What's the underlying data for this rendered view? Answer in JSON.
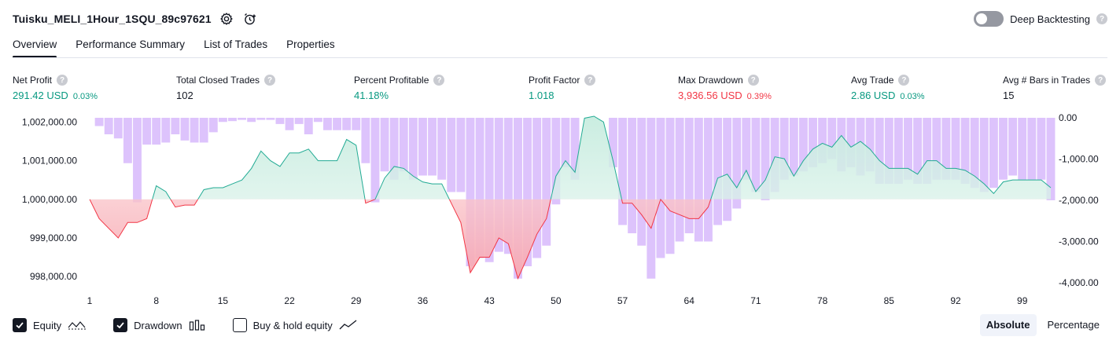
{
  "header": {
    "title": "Tuisku_MELI_1Hour_1SQU_89c97621",
    "deep_backtesting_label": "Deep Backtesting",
    "help_glyph": "?"
  },
  "icons": {
    "settings": "gear-icon",
    "alert": "alarm-clock-plus-icon",
    "help": "question-circle-icon"
  },
  "tabs": [
    {
      "label": "Overview",
      "active": true
    },
    {
      "label": "Performance Summary",
      "active": false
    },
    {
      "label": "List of Trades",
      "active": false
    },
    {
      "label": "Properties",
      "active": false
    }
  ],
  "metrics": [
    {
      "label": "Net Profit",
      "value": "291.42 USD",
      "pct": "0.03%",
      "tone": "pos"
    },
    {
      "label": "Total Closed Trades",
      "value": "102",
      "pct": "",
      "tone": "neu"
    },
    {
      "label": "Percent Profitable",
      "value": "41.18%",
      "pct": "",
      "tone": "pos"
    },
    {
      "label": "Profit Factor",
      "value": "1.018",
      "pct": "",
      "tone": "pos"
    },
    {
      "label": "Max Drawdown",
      "value": "3,936.56 USD",
      "pct": "0.39%",
      "tone": "neg"
    },
    {
      "label": "Avg Trade",
      "value": "2.86 USD",
      "pct": "0.03%",
      "tone": "pos"
    },
    {
      "label": "Avg # Bars in Trades",
      "value": "15",
      "pct": "",
      "tone": "neu"
    }
  ],
  "legend": [
    {
      "label": "Equity",
      "checked": true,
      "icon": "equity-wave-icon"
    },
    {
      "label": "Drawdown",
      "checked": true,
      "icon": "drawdown-bars-icon"
    },
    {
      "label": "Buy & hold equity",
      "checked": false,
      "icon": "buy-hold-line-icon"
    }
  ],
  "mode": {
    "absolute_label": "Absolute",
    "percentage_label": "Percentage",
    "selected": "Absolute"
  },
  "colors": {
    "equity_up": "#22ab94",
    "equity_down": "#f23645",
    "fill_up": "#d6f1ea",
    "fill_down": "#fcc8cc",
    "drawdown_bar": "#d7b8fb",
    "grid_text": "#131722"
  },
  "chart_data": {
    "type": "area",
    "x": [
      1,
      2,
      3,
      4,
      5,
      6,
      7,
      8,
      9,
      10,
      11,
      12,
      13,
      14,
      15,
      16,
      17,
      18,
      19,
      20,
      21,
      22,
      23,
      24,
      25,
      26,
      27,
      28,
      29,
      30,
      31,
      32,
      33,
      34,
      35,
      36,
      37,
      38,
      39,
      40,
      41,
      42,
      43,
      44,
      45,
      46,
      47,
      48,
      49,
      50,
      51,
      52,
      53,
      54,
      55,
      56,
      57,
      58,
      59,
      60,
      61,
      62,
      63,
      64,
      65,
      66,
      67,
      68,
      69,
      70,
      71,
      72,
      73,
      74,
      75,
      76,
      77,
      78,
      79,
      80,
      81,
      82,
      83,
      84,
      85,
      86,
      87,
      88,
      89,
      90,
      91,
      92,
      93,
      94,
      95,
      96,
      97,
      98,
      99,
      100,
      101,
      102
    ],
    "x_ticks": [
      1,
      8,
      15,
      22,
      29,
      36,
      43,
      50,
      57,
      64,
      71,
      78,
      85,
      92,
      99
    ],
    "series": [
      {
        "name": "Equity",
        "axis": "left",
        "values": [
          1000000,
          999500,
          999250,
          999000,
          999400,
          999400,
          999500,
          1000350,
          1000200,
          999800,
          999850,
          999850,
          1000250,
          1000300,
          1000300,
          1000400,
          1000500,
          1000800,
          1001250,
          1001000,
          1000850,
          1001200,
          1001200,
          1001300,
          1001000,
          1001000,
          1001000,
          1001550,
          1001400,
          999900,
          1000000,
          1000550,
          1000850,
          1000800,
          1000600,
          1000450,
          1000400,
          1000400,
          999900,
          999400,
          998100,
          998500,
          998500,
          999000,
          998850,
          997950,
          998500,
          999100,
          999500,
          1000600,
          1001000,
          1000700,
          1002100,
          1002150,
          1002000,
          1001000,
          999900,
          999900,
          999600,
          999250,
          1000000,
          999700,
          999600,
          999500,
          999500,
          999800,
          1000550,
          1000650,
          1000300,
          1000750,
          1000200,
          1000500,
          1001100,
          1001050,
          1000600,
          1001000,
          1001300,
          1001450,
          1001350,
          1001650,
          1001350,
          1001500,
          1001300,
          1001000,
          1000800,
          1000800,
          1000800,
          1000650,
          1001000,
          1001000,
          1000800,
          1000800,
          1000750,
          1000600,
          1000400,
          1000150,
          1000450,
          1000500,
          1000500,
          1000500,
          1000500,
          1000300
        ]
      },
      {
        "name": "Drawdown",
        "axis": "right",
        "values": [
          0,
          -200,
          -400,
          -500,
          -1100,
          -2050,
          -650,
          -650,
          -600,
          -400,
          -550,
          -600,
          -600,
          -350,
          -100,
          -80,
          -50,
          -100,
          -50,
          -50,
          -150,
          -300,
          -150,
          -400,
          -100,
          -300,
          -300,
          -300,
          -300,
          -1100,
          -2050,
          -1300,
          -1500,
          -1300,
          -1500,
          -1400,
          -1400,
          -1500,
          -1800,
          -1800,
          -3600,
          -3400,
          -3500,
          -3250,
          -3300,
          -3900,
          -3600,
          -3400,
          -3100,
          -2100,
          -1200,
          -1500,
          0,
          0,
          0,
          -1200,
          -2600,
          -2800,
          -3100,
          -3900,
          -3400,
          -3300,
          -3000,
          -2800,
          -3000,
          -3000,
          -2600,
          -2500,
          -2200,
          -1500,
          -1800,
          -2000,
          -1800,
          -1500,
          -1400,
          -1300,
          -1200,
          -1100,
          -1000,
          -1300,
          -1200,
          -1400,
          -1300,
          -1600,
          -1600,
          -1600,
          -1500,
          -1600,
          -1600,
          -1500,
          -1500,
          -1500,
          -1600,
          -1700,
          -1800,
          -1700,
          -1500,
          -1400,
          -1500,
          -1500,
          -1500,
          -2000
        ]
      }
    ],
    "y_left_ticks": [
      "1,002,000.00",
      "1,001,000.00",
      "1,000,000.00",
      "999,000.00",
      "998,000.00"
    ],
    "y_left_tick_values": [
      1002000,
      1001000,
      1000000,
      999000,
      998000
    ],
    "y_right_ticks": [
      "0.00",
      "-1,000.00",
      "-2,000.00",
      "-3,000.00",
      "-4,000.00"
    ],
    "y_right_tick_values": [
      0,
      -1000,
      -2000,
      -3000,
      -4000
    ],
    "ylim_left": [
      997800,
      1002150
    ],
    "ylim_right": [
      -4000,
      0
    ],
    "baseline": 1000000,
    "grid": false,
    "legend_position": "bottom-left"
  }
}
